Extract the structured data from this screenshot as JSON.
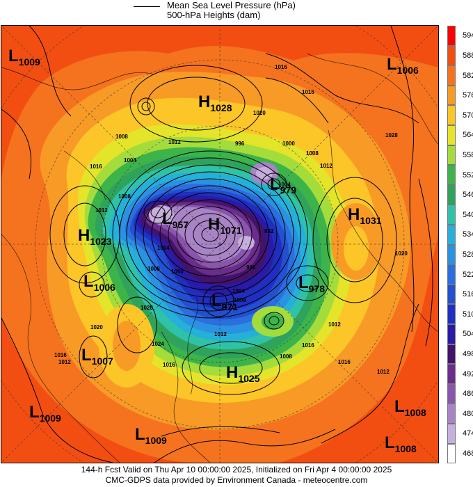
{
  "legend": {
    "line_label_1": "Mean Sea Level Pressure (hPa)",
    "line_label_2": "500-hPa Heights (dam)"
  },
  "colorbar": {
    "levels": [
      {
        "value": "594",
        "color": "#ff0000"
      },
      {
        "value": "588",
        "color": "#f24e12"
      },
      {
        "value": "582",
        "color": "#f5731e"
      },
      {
        "value": "576",
        "color": "#f89a26"
      },
      {
        "value": "570",
        "color": "#fcc528"
      },
      {
        "value": "564",
        "color": "#e4e42a"
      },
      {
        "value": "558",
        "color": "#a4dc3c"
      },
      {
        "value": "552",
        "color": "#3cb44a"
      },
      {
        "value": "546",
        "color": "#2fa35c"
      },
      {
        "value": "540",
        "color": "#2fc2a8"
      },
      {
        "value": "534",
        "color": "#25b0da"
      },
      {
        "value": "528",
        "color": "#2a92e0"
      },
      {
        "value": "522",
        "color": "#2b6fde"
      },
      {
        "value": "516",
        "color": "#2250d0"
      },
      {
        "value": "510",
        "color": "#1e2fc2"
      },
      {
        "value": "504",
        "color": "#2a1aa8"
      },
      {
        "value": "498",
        "color": "#43136a"
      },
      {
        "value": "492",
        "color": "#6a2d8c"
      },
      {
        "value": "486",
        "color": "#8a55ac"
      },
      {
        "value": "480",
        "color": "#a884c6"
      },
      {
        "value": "474",
        "color": "#c6afdc"
      },
      {
        "value": "468",
        "color": "#ffffff"
      }
    ]
  },
  "pressure_centres": [
    {
      "type": "L",
      "value": "1009"
    },
    {
      "type": "L",
      "value": "1006"
    },
    {
      "type": "H",
      "value": "1028"
    },
    {
      "type": "H",
      "value": "1031"
    },
    {
      "type": "H",
      "value": "1023"
    },
    {
      "type": "L",
      "value": "1006"
    },
    {
      "type": "L",
      "value": "1007"
    },
    {
      "type": "H",
      "value": "1025"
    },
    {
      "type": "L",
      "value": "1009"
    },
    {
      "type": "L",
      "value": "1009"
    },
    {
      "type": "L",
      "value": "1008"
    },
    {
      "type": "L",
      "value": "1008"
    },
    {
      "type": "L",
      "value": "978"
    },
    {
      "type": "H",
      "value": "1071"
    },
    {
      "type": "L",
      "value": "957"
    },
    {
      "type": "L",
      "value": "979"
    },
    {
      "type": "L",
      "value": "971"
    }
  ],
  "isobar_labels": [
    "1016",
    "1016",
    "1020",
    "1012",
    "1008",
    "1004",
    "996",
    "1000",
    "1008",
    "1012",
    "1004",
    "1016",
    "1008",
    "1012",
    "1016",
    "1020",
    "1024",
    "1028",
    "1012",
    "1016",
    "1008",
    "1004",
    "1000",
    "996",
    "992",
    "1008",
    "1012",
    "1016",
    "1012",
    "1020",
    "1016",
    "1028",
    "1004",
    "1008",
    "1012"
  ],
  "footer": {
    "line1": "144-h Fcst Valid on Thu Apr 10 00:00:00 2025, Initialized on Fri Apr  4 00:00:00 2025",
    "line2": "CMC-GDPS data provided by Environment Canada - meteocentre.com"
  }
}
